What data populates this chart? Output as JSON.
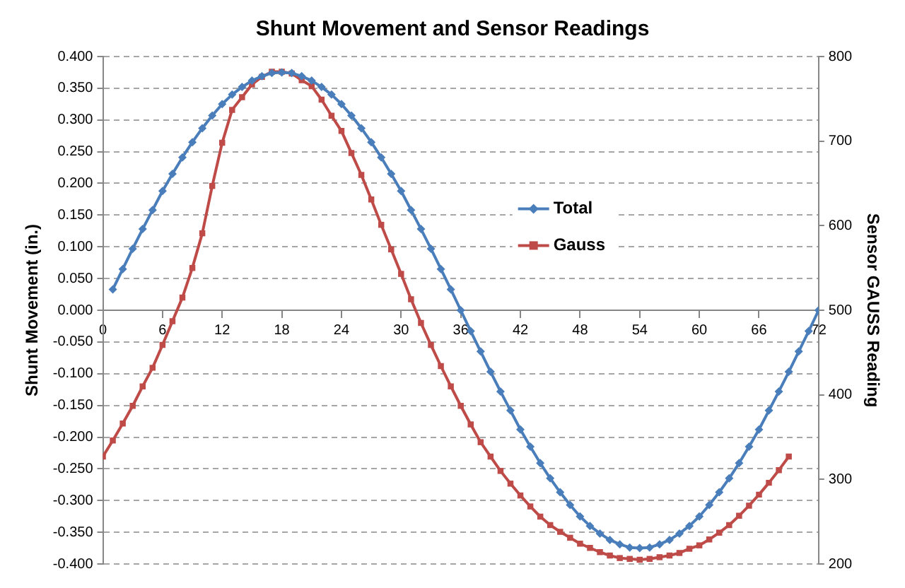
{
  "chart_data": {
    "type": "line",
    "title": "Shunt Movement and Sensor Readings",
    "ylabel": "Shunt Movement (in.)",
    "y2label": "Sensor GAUSS Reading",
    "xlim": [
      0,
      72
    ],
    "xticks": [
      0,
      6,
      12,
      18,
      24,
      30,
      36,
      42,
      48,
      54,
      60,
      66,
      72
    ],
    "ylim": [
      -0.4,
      0.4
    ],
    "yticks": [
      {
        "value": -0.4,
        "label": "-0.400"
      },
      {
        "value": -0.35,
        "label": "-0.350"
      },
      {
        "value": -0.3,
        "label": "-0.300"
      },
      {
        "value": -0.25,
        "label": "-0.250"
      },
      {
        "value": -0.2,
        "label": "-0.200"
      },
      {
        "value": -0.15,
        "label": "-0.150"
      },
      {
        "value": -0.1,
        "label": "-0.100"
      },
      {
        "value": -0.05,
        "label": "-0.050"
      },
      {
        "value": 0,
        "label": "0.000"
      },
      {
        "value": 0.05,
        "label": "0.050"
      },
      {
        "value": 0.1,
        "label": "0.100"
      },
      {
        "value": 0.15,
        "label": "0.150"
      },
      {
        "value": 0.2,
        "label": "0.200"
      },
      {
        "value": 0.25,
        "label": "0.250"
      },
      {
        "value": 0.3,
        "label": "0.300"
      },
      {
        "value": 0.35,
        "label": "0.350"
      },
      {
        "value": 0.4,
        "label": "0.400"
      }
    ],
    "y2lim": [
      200,
      800
    ],
    "y2ticks": [
      200,
      300,
      400,
      500,
      600,
      700,
      800
    ],
    "grid": "y",
    "legend": "right",
    "line_style": "solid",
    "series": [
      {
        "name": "Total",
        "color": "#4a7ebb",
        "marker": "diamond",
        "x": [
          1,
          2,
          3,
          4,
          5,
          6,
          7,
          8,
          9,
          10,
          11,
          12,
          13,
          14,
          15,
          16,
          17,
          18,
          19,
          20,
          21,
          22,
          23,
          24,
          25,
          26,
          27,
          28,
          29,
          30,
          31,
          32,
          33,
          34,
          35,
          36,
          37,
          38,
          39,
          40,
          41,
          42,
          43,
          44,
          45,
          46,
          47,
          48,
          49,
          50,
          51,
          52,
          53,
          54,
          55,
          56,
          57,
          58,
          59,
          60,
          61,
          62,
          63,
          64,
          65,
          66,
          67,
          68,
          69,
          70,
          71,
          72
        ],
        "values": [
          0.033,
          0.065,
          0.097,
          0.128,
          0.158,
          0.188,
          0.215,
          0.241,
          0.265,
          0.287,
          0.307,
          0.325,
          0.34,
          0.352,
          0.362,
          0.369,
          0.374,
          0.375,
          0.374,
          0.369,
          0.362,
          0.352,
          0.34,
          0.325,
          0.307,
          0.287,
          0.265,
          0.241,
          0.215,
          0.188,
          0.158,
          0.128,
          0.097,
          0.065,
          0.033,
          0,
          -0.033,
          -0.065,
          -0.097,
          -0.128,
          -0.158,
          -0.188,
          -0.215,
          -0.241,
          -0.265,
          -0.287,
          -0.307,
          -0.325,
          -0.34,
          -0.352,
          -0.362,
          -0.369,
          -0.374,
          -0.375,
          -0.374,
          -0.369,
          -0.362,
          -0.352,
          -0.34,
          -0.325,
          -0.307,
          -0.287,
          -0.265,
          -0.241,
          -0.215,
          -0.188,
          -0.158,
          -0.128,
          -0.097,
          -0.065,
          -0.033,
          0
        ]
      },
      {
        "name": "Gauss",
        "color": "#be4b48",
        "marker": "square",
        "axis": "y2",
        "x": [
          0,
          1,
          2,
          3,
          4,
          5,
          6,
          7,
          8,
          9,
          10,
          11,
          12,
          13,
          14,
          15,
          16,
          17,
          18,
          19,
          20,
          21,
          22,
          23,
          24,
          25,
          26,
          27,
          28,
          29,
          30,
          31,
          32,
          33,
          34,
          35,
          36,
          37,
          38,
          39,
          40,
          41,
          42,
          43,
          44,
          45,
          46,
          47,
          48,
          49,
          50,
          51,
          52,
          53,
          54,
          55,
          56,
          57,
          58,
          59,
          60,
          61,
          62,
          63,
          64,
          65,
          66,
          67,
          68,
          69
        ],
        "values": [
          327,
          346,
          366,
          387,
          410,
          432,
          459,
          487,
          515,
          550,
          591,
          647,
          698,
          737,
          752,
          767,
          776,
          782,
          782,
          780,
          772,
          765,
          749,
          730,
          712,
          686,
          660,
          631,
          601,
          572,
          543,
          513,
          485,
          459,
          434,
          410,
          387,
          365,
          344,
          327,
          310,
          295,
          281,
          268,
          256,
          246,
          238,
          231,
          224,
          219,
          214,
          210,
          207,
          206,
          205,
          206,
          208,
          210,
          213,
          218,
          222,
          229,
          237,
          246,
          257,
          269,
          282,
          296,
          311,
          327
        ]
      }
    ]
  }
}
